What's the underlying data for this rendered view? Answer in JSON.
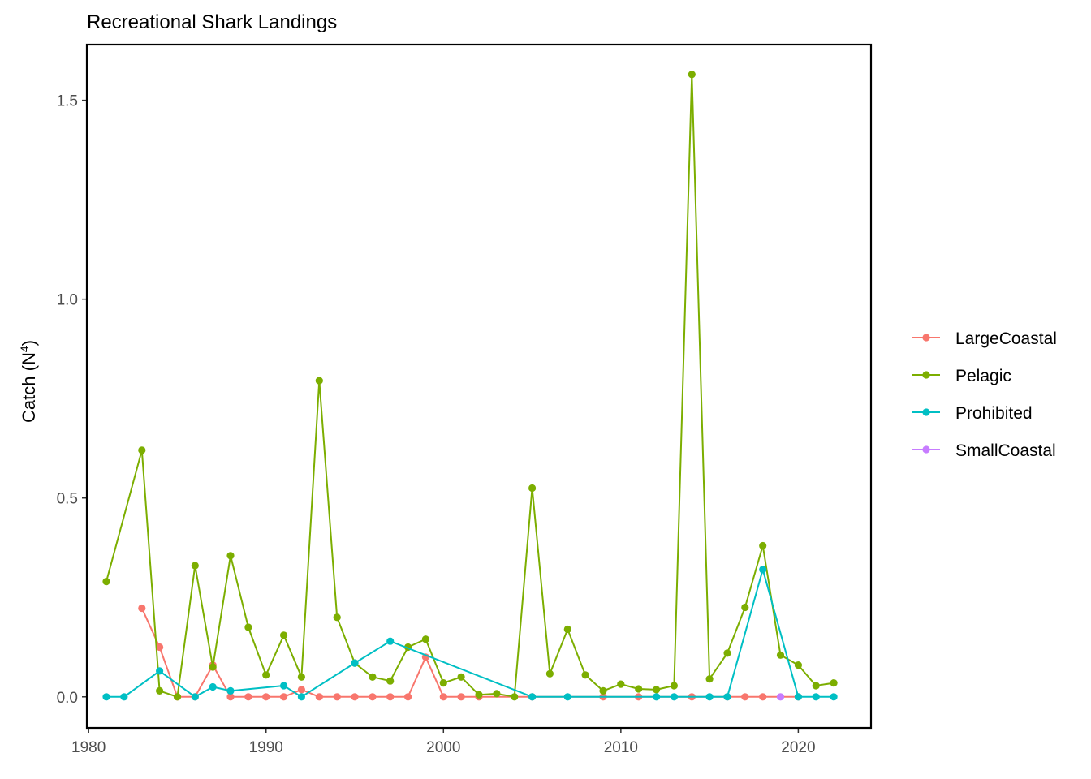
{
  "chart_data": {
    "type": "line",
    "title": "Recreational Shark Landings",
    "xlabel": "",
    "ylabel": {
      "main": "Catch (N",
      "superscript": "4",
      "close": ")"
    },
    "xlim": [
      1979.9,
      2024.1
    ],
    "ylim": [
      -0.078,
      1.64
    ],
    "x_ticks": [
      1980,
      1990,
      2000,
      2010,
      2020
    ],
    "y_ticks": [
      0.0,
      0.5,
      1.0,
      1.5
    ],
    "y_tick_labels": [
      "0.0",
      "0.5",
      "1.0",
      "1.5"
    ],
    "grid": false,
    "legend_position": "right",
    "series": [
      {
        "name": "LargeCoastal",
        "color": "#F8766D",
        "points": [
          [
            1983,
            0.223
          ],
          [
            1984,
            0.125
          ],
          [
            1985,
            0.0
          ],
          [
            1986,
            0.0
          ],
          [
            1987,
            0.08
          ],
          [
            1988,
            0.0
          ],
          [
            1989,
            0.0
          ],
          [
            1990,
            0.0
          ],
          [
            1991,
            0.0
          ],
          [
            1992,
            0.018
          ],
          [
            1993,
            0.0
          ],
          [
            1994,
            0.0
          ],
          [
            1995,
            0.0
          ],
          [
            1996,
            0.0
          ],
          [
            1997,
            0.0
          ],
          [
            1998,
            0.0
          ],
          [
            1999,
            0.1
          ],
          [
            2000,
            0.0
          ],
          [
            2001,
            0.0
          ],
          [
            2002,
            0.0
          ],
          [
            2005,
            0.0
          ],
          [
            2009,
            0.0
          ],
          [
            2011,
            0.0
          ],
          [
            2014,
            0.0
          ],
          [
            2016,
            0.0
          ],
          [
            2017,
            0.0
          ],
          [
            2018,
            0.0
          ],
          [
            2020,
            0.0
          ]
        ]
      },
      {
        "name": "Pelagic",
        "color": "#7CAE00",
        "points": [
          [
            1981,
            0.29
          ],
          [
            1983,
            0.62
          ],
          [
            1984,
            0.015
          ],
          [
            1985,
            0.0
          ],
          [
            1986,
            0.33
          ],
          [
            1987,
            0.075
          ],
          [
            1988,
            0.355
          ],
          [
            1989,
            0.175
          ],
          [
            1990,
            0.055
          ],
          [
            1991,
            0.155
          ],
          [
            1992,
            0.05
          ],
          [
            1993,
            0.795
          ],
          [
            1994,
            0.2
          ],
          [
            1995,
            0.085
          ],
          [
            1996,
            0.05
          ],
          [
            1997,
            0.04
          ],
          [
            1998,
            0.125
          ],
          [
            1999,
            0.145
          ],
          [
            2000,
            0.035
          ],
          [
            2001,
            0.05
          ],
          [
            2002,
            0.005
          ],
          [
            2003,
            0.008
          ],
          [
            2004,
            0.0
          ],
          [
            2005,
            0.525
          ],
          [
            2006,
            0.058
          ],
          [
            2007,
            0.17
          ],
          [
            2008,
            0.055
          ],
          [
            2009,
            0.015
          ],
          [
            2010,
            0.032
          ],
          [
            2011,
            0.02
          ],
          [
            2012,
            0.018
          ],
          [
            2013,
            0.028
          ],
          [
            2014,
            1.565
          ],
          [
            2015,
            0.045
          ],
          [
            2016,
            0.11
          ],
          [
            2017,
            0.225
          ],
          [
            2018,
            0.38
          ],
          [
            2019,
            0.105
          ],
          [
            2020,
            0.08
          ],
          [
            2021,
            0.028
          ],
          [
            2022,
            0.035
          ]
        ]
      },
      {
        "name": "Prohibited",
        "color": "#00BFC4",
        "points": [
          [
            1981,
            0.0
          ],
          [
            1982,
            0.0
          ],
          [
            1984,
            0.065
          ],
          [
            1986,
            0.0
          ],
          [
            1987,
            0.025
          ],
          [
            1988,
            0.015
          ],
          [
            1991,
            0.028
          ],
          [
            1992,
            0.0
          ],
          [
            1995,
            0.085
          ],
          [
            1997,
            0.14
          ],
          [
            2005,
            0.0
          ],
          [
            2007,
            0.0
          ],
          [
            2012,
            0.0
          ],
          [
            2013,
            0.0
          ],
          [
            2015,
            0.0
          ],
          [
            2016,
            0.0
          ],
          [
            2018,
            0.32
          ],
          [
            2020,
            0.0
          ],
          [
            2021,
            0.0
          ],
          [
            2022,
            0.0
          ]
        ]
      },
      {
        "name": "SmallCoastal",
        "color": "#C77CFF",
        "points": [
          [
            2019,
            0.0
          ]
        ]
      }
    ]
  }
}
